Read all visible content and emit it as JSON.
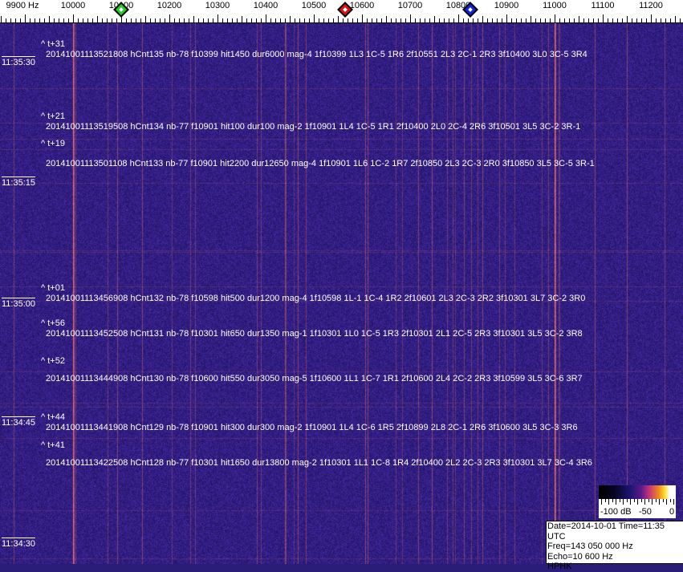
{
  "axis": {
    "labels": [
      {
        "text": "9900 Hz",
        "hz": 9900
      },
      {
        "text": "10000",
        "hz": 10000
      },
      {
        "text": "10100",
        "hz": 10100
      },
      {
        "text": "10200",
        "hz": 10200
      },
      {
        "text": "10300",
        "hz": 10300
      },
      {
        "text": "10400",
        "hz": 10400
      },
      {
        "text": "10500",
        "hz": 10500
      },
      {
        "text": "10600",
        "hz": 10600
      },
      {
        "text": "10700",
        "hz": 10700
      },
      {
        "text": "10800",
        "hz": 10800
      },
      {
        "text": "10900",
        "hz": 10900
      },
      {
        "text": "11000",
        "hz": 11000
      },
      {
        "text": "11100",
        "hz": 11100
      },
      {
        "text": "11200",
        "hz": 11200
      }
    ],
    "markers": [
      {
        "name": "green-marker",
        "hz": 10100,
        "color": "#22cc22"
      },
      {
        "name": "red-marker",
        "hz": 10565,
        "color": "#dd1111"
      },
      {
        "name": "blue-marker",
        "hz": 10825,
        "color": "#1122dd"
      }
    ]
  },
  "colors": {
    "background": "#2a1d78",
    "carrier": "#e07a3a"
  },
  "times": [
    "11:35:30",
    "11:35:15",
    "11:35:00",
    "11:34:45",
    "11:34:30"
  ],
  "tmarks": [
    "^ t+31",
    "^ t+21",
    "^ t+19",
    "^ t+01",
    "^ t+56",
    "^ t+52",
    "^ t+44",
    "^ t+41"
  ],
  "detections": [
    "20141001113521808 hCnt135 nb-78 f10399 hit1450 dur6000 mag-4 1f10399 1L3 1C-5 1R6 2f10551 2L3 2C-1 2R3 3f10400 3L0 3C-5 3R4",
    "20141001113519508 hCnt134 nb-77 f10901 hit100 dur100 mag-2 1f10901 1L4 1C-5 1R1 2f10400 2L0 2C-4 2R6 3f10501 3L5 3C-2 3R-1",
    "20141001113501108 hCnt133 nb-77 f10901 hit2200 dur12650 mag-4 1f10901 1L6 1C-2 1R7 2f10850 2L3 2C-3 2R0 3f10850 3L5 3C-5 3R-1",
    "20141001113456908 hCnt132 nb-78 f10598 hit500 dur1200 mag-4 1f10598 1L-1 1C-4 1R2 2f10601 2L3 2C-3 2R2 3f10301 3L7 3C-2 3R0",
    "20141001113452508 hCnt131 nb-78 f10301 hit650 dur1350 mag-1 1f10301 1L0 1C-5 1R3 2f10301 2L1 2C-5 2R3 3f10301 3L5 3C-2 3R8",
    "20141001113444908 hCnt130 nb-78 f10600 hit550 dur3050 mag-5 1f10600 1L1 1C-7 1R1 2f10600 2L4 2C-2 2R3 3f10599 3L5 3C-6 3R7",
    "20141001113441908 hCnt129 nb-78 f10901 hit300 dur300 mag-2 1f10901 1L4 1C-6 1R5 2f10899 2L8 2C-1 2R6 3f10600 3L5 3C-3 3R6",
    "20141001113422508 hCnt128 nb-77 f10301 hit1650 dur13800 mag-2 1f10301 1L1 1C-8 1R4 2f10400 2L2 2C-3 2R3 3f10301 3L7 3C-4 3R6"
  ],
  "colorbar": {
    "labels": [
      "-100 dB",
      "-50",
      "0"
    ]
  },
  "info": {
    "date_time": "Date=2014-10-01 Time=11:35 UTC",
    "freq": "Freq=143 050 000 Hz",
    "echo": "Echo=10 600 Hz",
    "station": "HPHK"
  }
}
